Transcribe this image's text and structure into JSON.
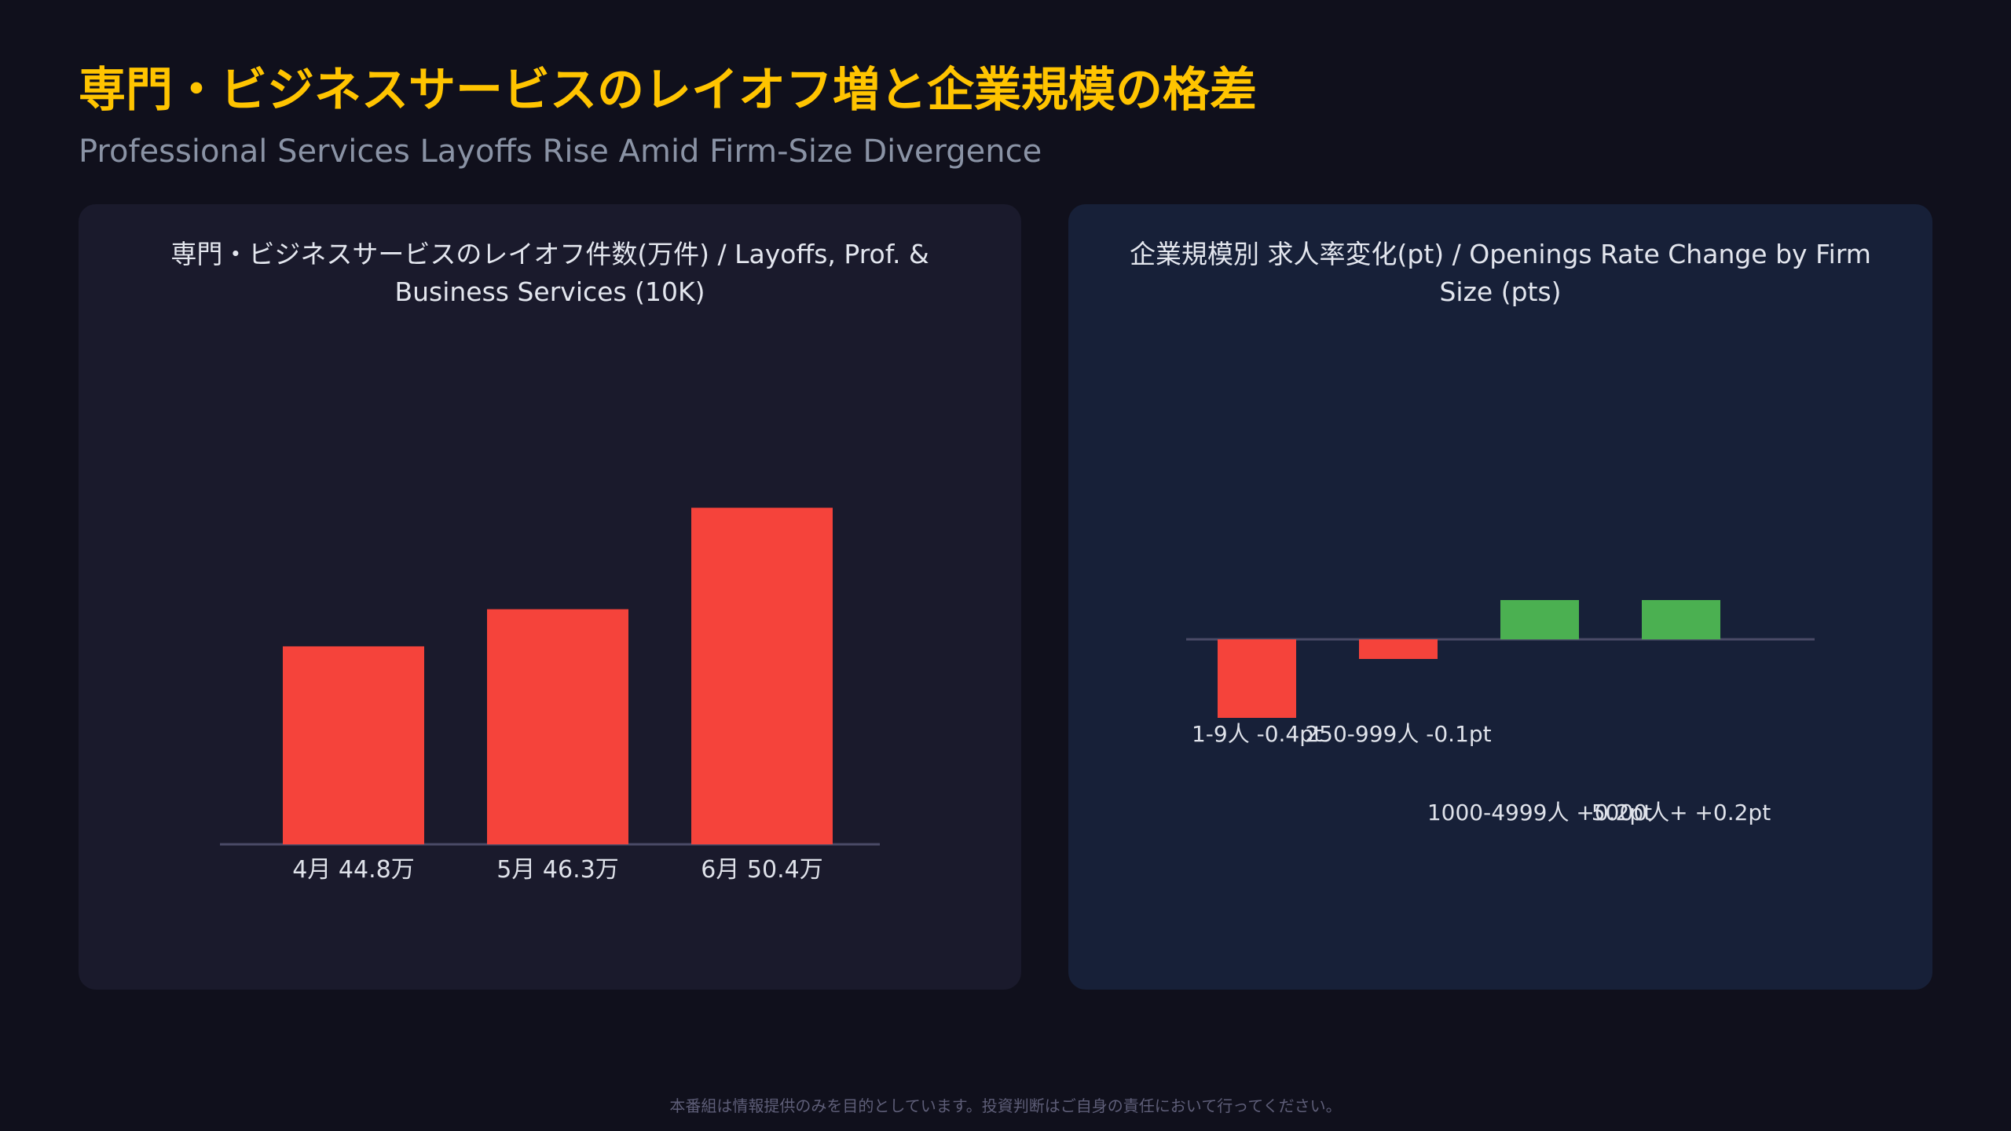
{
  "header": {
    "title": "専門・ビジネスサービスのレイオフ増と企業規模の格差",
    "subtitle": "Professional Services Layoffs Rise Amid Firm-Size Divergence"
  },
  "footer": {
    "disclaimer": "本番組は情報提供のみを目的としています。投資判断はご自身の責任において行ってください。"
  },
  "colors": {
    "background": "#10101c",
    "title": "#ffc400",
    "negative": "#f5433b",
    "positive": "#4bb051",
    "axis": "#4a4a66",
    "label": "#dfe2ea"
  },
  "chart_data": [
    {
      "type": "bar",
      "title": "専門・ビジネスサービスのレイオフ件数(万件) / Layoffs, Prof. & Business Services (10K)",
      "categories": [
        "4月",
        "5月",
        "6月"
      ],
      "values": [
        44.8,
        46.3,
        50.4
      ],
      "data_labels": [
        "4月 44.8万",
        "5月 46.3万",
        "6月 50.4万"
      ],
      "ylim": [
        36.8,
        56
      ],
      "grid": false,
      "legend": "none"
    },
    {
      "type": "bar",
      "title": "企業規模別 求人率変化(pt) / Openings Rate Change by Firm Size (pts)",
      "categories": [
        "1-9人",
        "250-999人",
        "1000-4999人",
        "5000人+"
      ],
      "values": [
        -0.4,
        -0.1,
        0.2,
        0.2
      ],
      "data_labels": [
        "1-9人 -0.4pt",
        "250-999人 -0.1pt",
        "1000-4999人 +0.2pt",
        "5000人+ +0.2pt"
      ],
      "ylim": [
        -0.8,
        0.8
      ],
      "grid": false,
      "legend": "none"
    }
  ]
}
